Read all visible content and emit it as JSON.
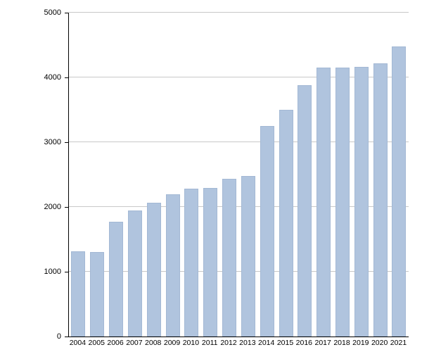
{
  "chart_data": {
    "type": "bar",
    "title": "",
    "xlabel": "",
    "ylabel": "",
    "categories": [
      "2004",
      "2005",
      "2006",
      "2007",
      "2008",
      "2009",
      "2010",
      "2011",
      "2012",
      "2013",
      "2014",
      "2015",
      "2016",
      "2017",
      "2018",
      "2019",
      "2020",
      "2021"
    ],
    "values": [
      1320,
      1300,
      1770,
      1950,
      2070,
      2200,
      2280,
      2290,
      2430,
      2480,
      3250,
      3500,
      3880,
      4150,
      4150,
      4160,
      4220,
      4480
    ],
    "ylim": [
      0,
      5000
    ],
    "yticks": [
      0,
      1000,
      2000,
      3000,
      4000,
      5000
    ],
    "grid": true,
    "legend": false,
    "bar_color": "#b0c4de",
    "bar_border_color": "#a3b8d4",
    "gridline_color": "#c8c8c8",
    "axis_color": "#000000"
  }
}
